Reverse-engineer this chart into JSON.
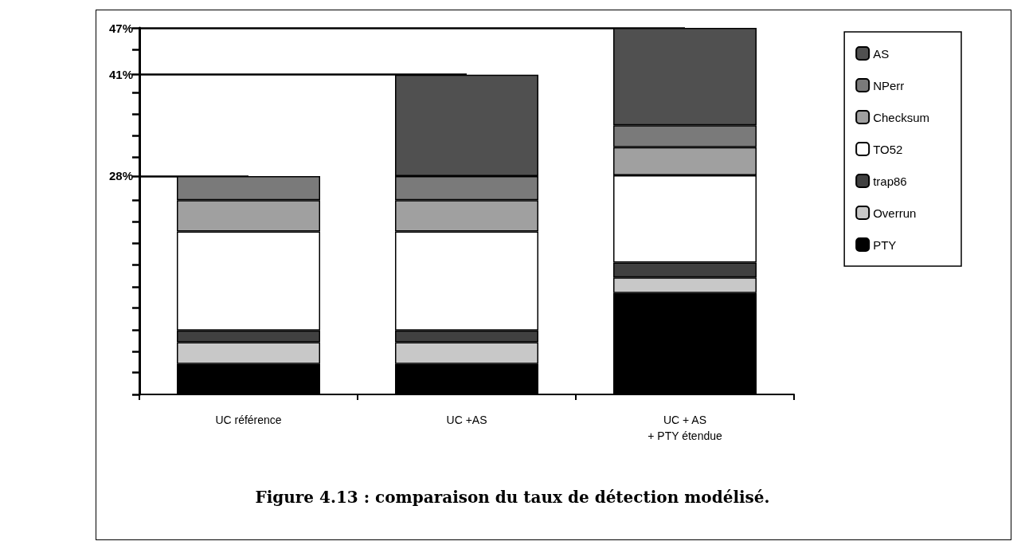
{
  "chart_data": {
    "type": "bar",
    "stacked": true,
    "title": "Figure 4.13 : comparaison du taux de détection modélisé.",
    "categories": [
      "UC référence",
      "UC +AS",
      "UC + AS\n+ PTY étendue"
    ],
    "series": [
      {
        "name": "PTY",
        "color": "#000000",
        "values": [
          3.9,
          3.9,
          13.0
        ]
      },
      {
        "name": "Overrun",
        "color": "#c8c8c8",
        "values": [
          2.8,
          2.8,
          2.0
        ]
      },
      {
        "name": "trap86",
        "color": "#404040",
        "values": [
          1.5,
          1.5,
          1.9
        ]
      },
      {
        "name": "TO52",
        "color": "#ffffff",
        "values": [
          12.7,
          12.7,
          11.2
        ]
      },
      {
        "name": "Checksum",
        "color": "#a0a0a0",
        "values": [
          4.0,
          4.0,
          3.6
        ]
      },
      {
        "name": "NPerr",
        "color": "#7a7a7a",
        "values": [
          3.1,
          3.1,
          2.8
        ]
      },
      {
        "name": "AS",
        "color": "#505050",
        "values": [
          null,
          13.0,
          12.5
        ]
      }
    ],
    "ylim": [
      0,
      47
    ],
    "yticks": [
      {
        "value": 0,
        "label": null
      },
      {
        "value": 2.8,
        "label": null
      },
      {
        "value": 5.5,
        "label": null
      },
      {
        "value": 8.3,
        "label": null
      },
      {
        "value": 11.1,
        "label": null
      },
      {
        "value": 13.8,
        "label": null
      },
      {
        "value": 16.6,
        "label": null
      },
      {
        "value": 19.4,
        "label": null
      },
      {
        "value": 22.1,
        "label": null
      },
      {
        "value": 24.9,
        "label": null
      },
      {
        "value": 28,
        "label": "28%"
      },
      {
        "value": 30.4,
        "label": null
      },
      {
        "value": 33.2,
        "label": null
      },
      {
        "value": 35.9,
        "label": null
      },
      {
        "value": 38.7,
        "label": null
      },
      {
        "value": 41,
        "label": "41%"
      },
      {
        "value": 44.2,
        "label": null
      },
      {
        "value": 47,
        "label": "47%"
      }
    ],
    "ref_lines": [
      {
        "axis": "y",
        "value": 28,
        "color": "#000000"
      },
      {
        "axis": "y",
        "value": 41,
        "color": "#000000"
      },
      {
        "axis": "y",
        "value": 47,
        "color": "#000000"
      }
    ],
    "legend": "right",
    "grid": false
  }
}
